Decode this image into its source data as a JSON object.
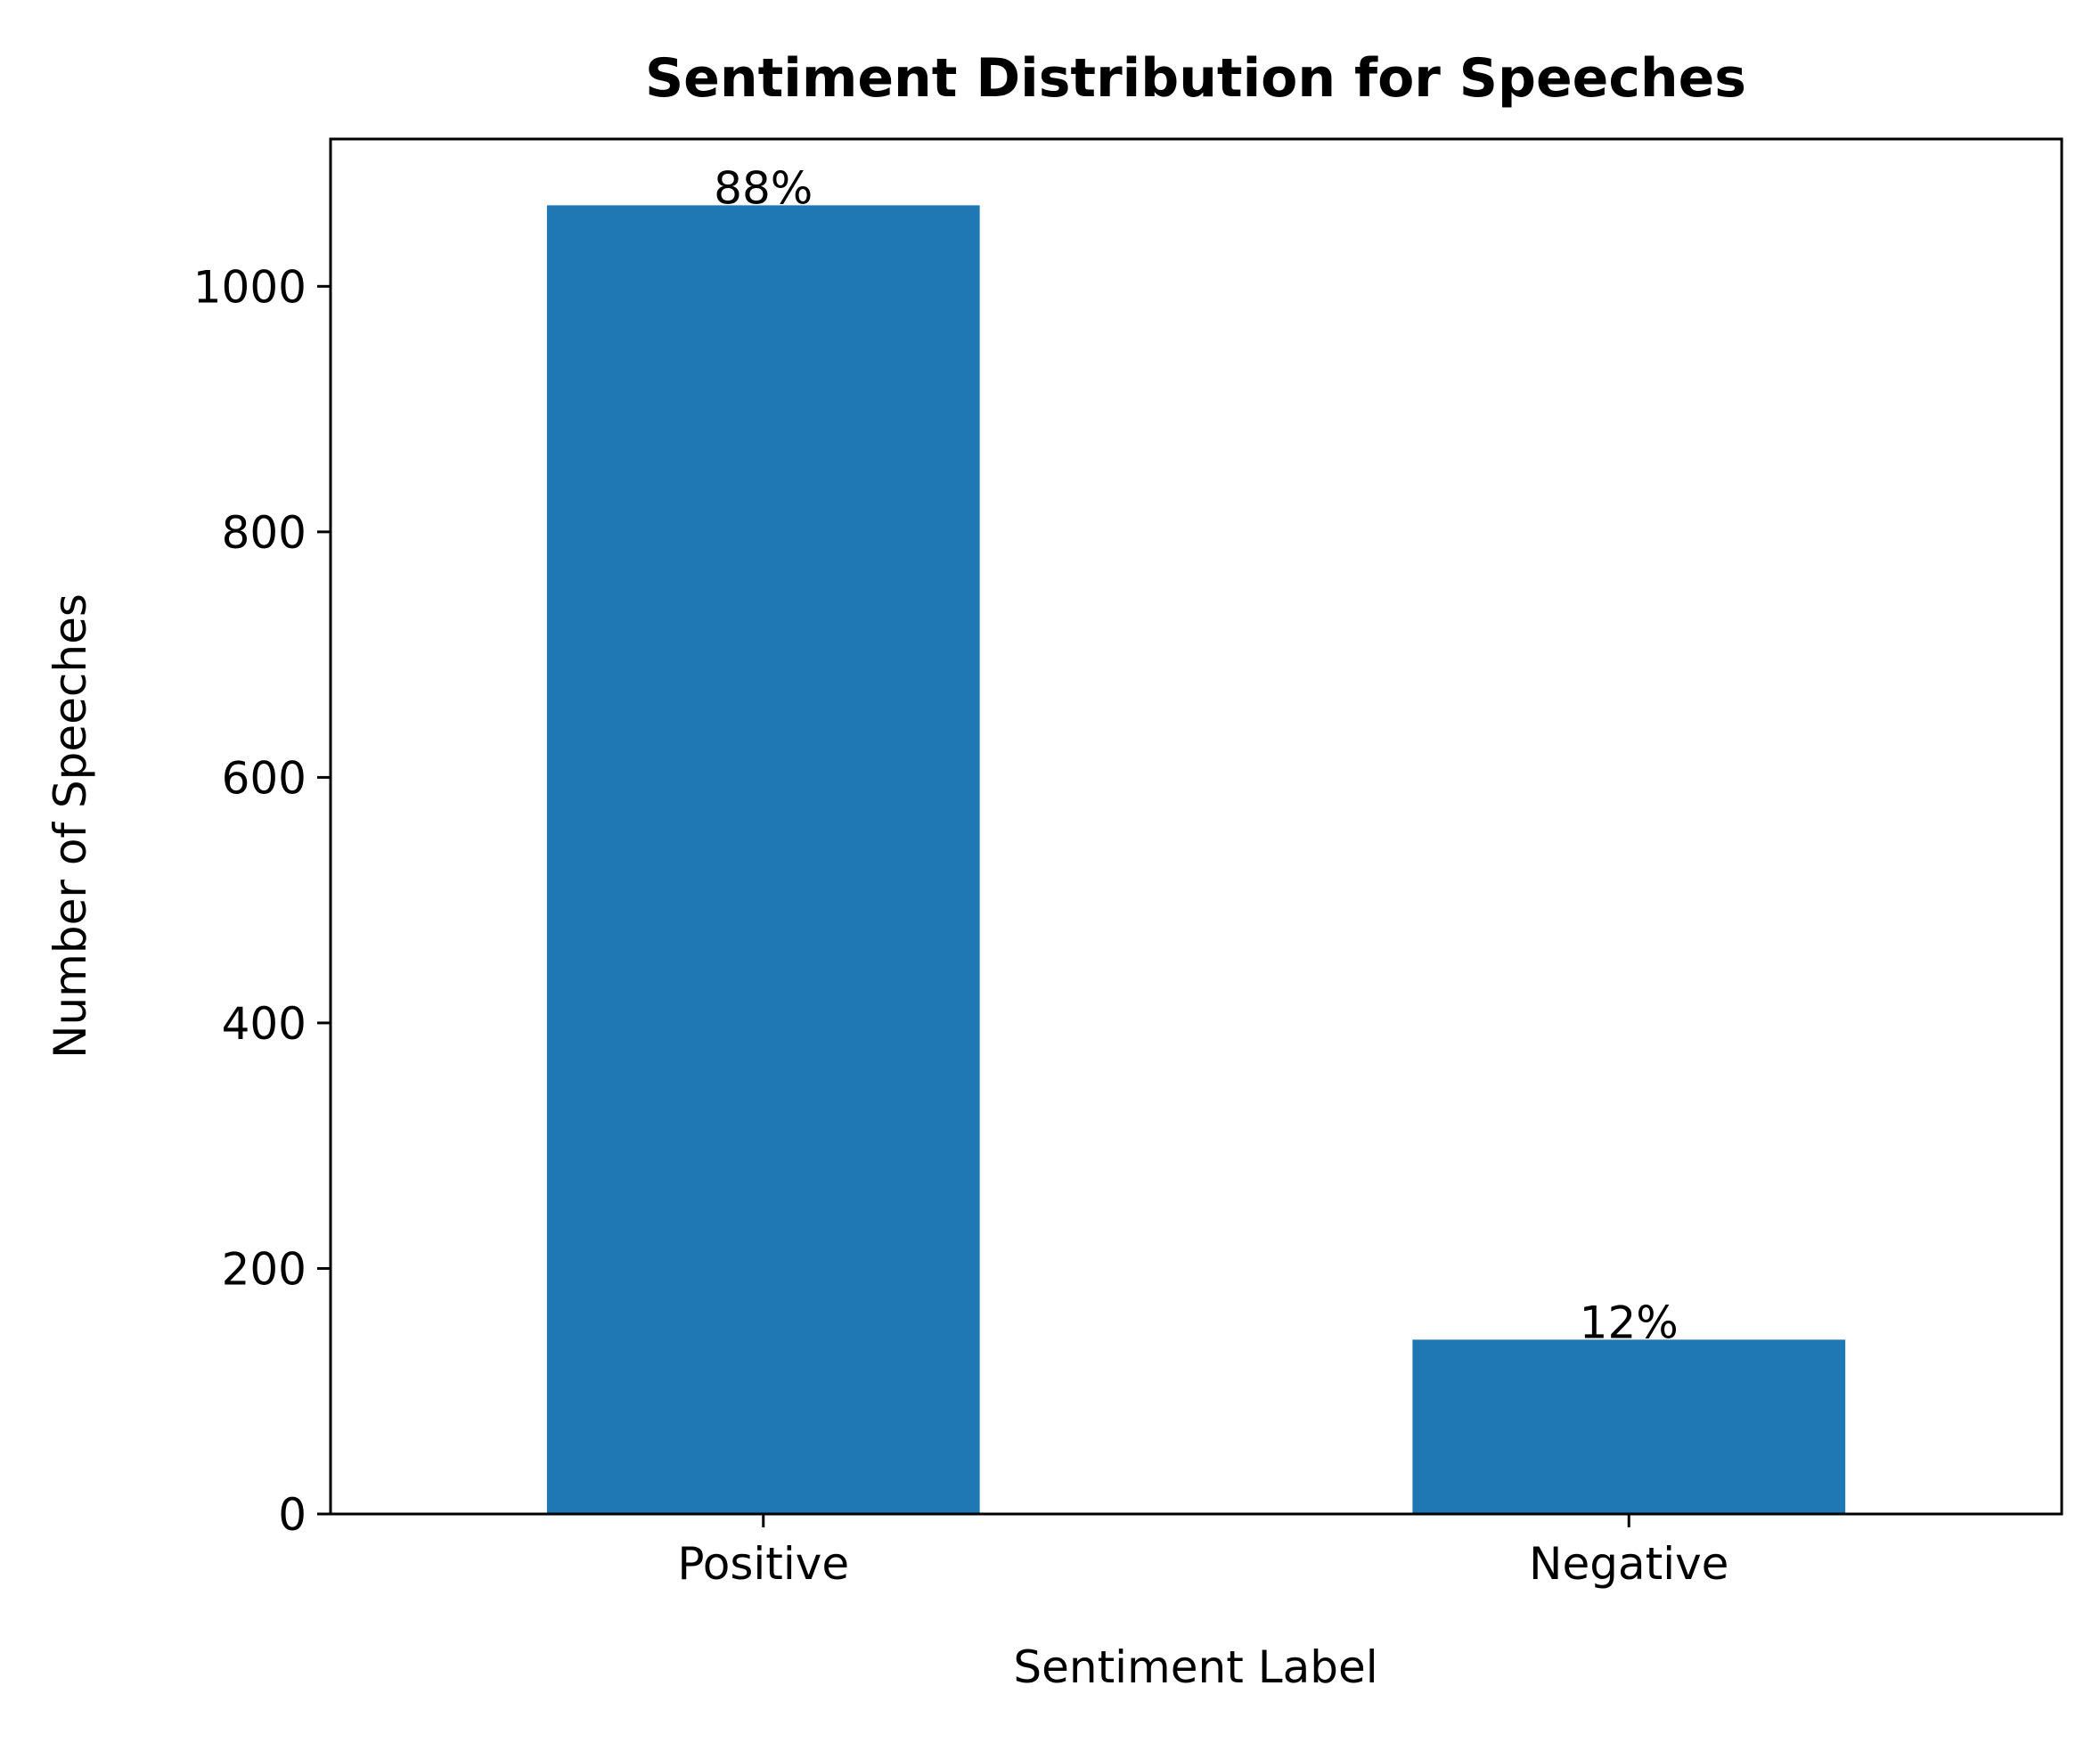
{
  "chart_data": {
    "type": "bar",
    "title": "Sentiment Distribution for Speeches",
    "xlabel": "Sentiment Label",
    "ylabel": "Number of Speeches",
    "categories": [
      "Positive",
      "Negative"
    ],
    "values": [
      1066,
      142
    ],
    "data_labels": [
      "88%",
      "12%"
    ],
    "ylim": [
      0,
      1120
    ],
    "yticks": [
      0,
      200,
      400,
      600,
      800,
      1000
    ],
    "ytick_labels": [
      "0",
      "200",
      "400",
      "600",
      "800",
      "1000"
    ],
    "bar_color": "#1f77b4",
    "grid": false,
    "legend": "none"
  }
}
